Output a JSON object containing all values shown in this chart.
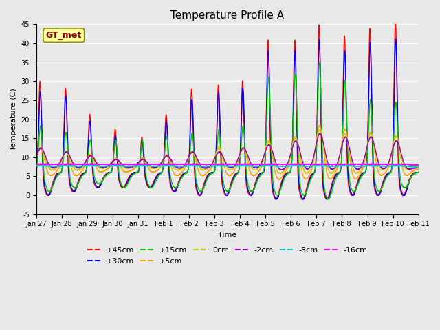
{
  "title": "Temperature Profile A",
  "xlabel": "Time",
  "ylabel": "Temperature (C)",
  "ylim": [
    -5,
    45
  ],
  "yticks": [
    -5,
    0,
    5,
    10,
    15,
    20,
    25,
    30,
    35,
    40,
    45
  ],
  "annotation_text": "GT_met",
  "annotation_fontsize": 9,
  "annotation_color": "#8B0000",
  "annotation_bg": "#FFFFA0",
  "annotation_border": "#8B8B00",
  "series_labels": [
    "+45cm",
    "+30cm",
    "+15cm",
    "+5cm",
    "0cm",
    "-2cm",
    "-8cm",
    "-16cm"
  ],
  "series_colors": [
    "#FF0000",
    "#0000FF",
    "#00CC00",
    "#FFA500",
    "#CCCC00",
    "#9900CC",
    "#00CCCC",
    "#FF00FF"
  ],
  "bg_color": "#E8E8E8",
  "plot_bg_color": "#E8E8E8",
  "grid_color": "#FFFFFF",
  "xtick_labels": [
    "Jan 27",
    "Jan 28",
    "Jan 29",
    "Jan 30",
    "Jan 31",
    "Feb 1",
    "Feb 2",
    "Feb 3",
    "Feb 4",
    "Feb 5",
    "Feb 6",
    "Feb 7",
    "Feb 8",
    "Feb 9",
    "Feb 10",
    "Feb 11"
  ],
  "legend_ncol": 6,
  "legend_fontsize": 8
}
